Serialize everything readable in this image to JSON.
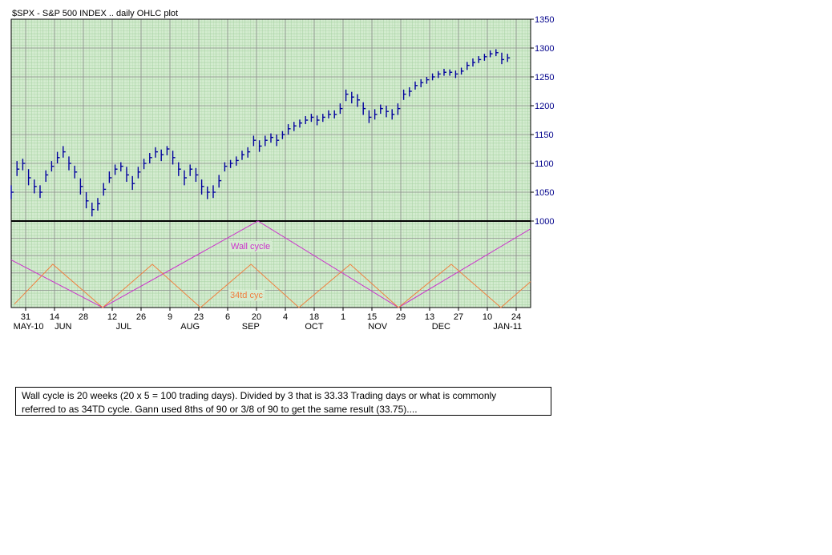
{
  "chart_data": {
    "type": "ohlc",
    "title": "$SPX - S&P 500 INDEX .. daily OHLC plot",
    "color": "#00009c",
    "xlim": [
      0,
      180
    ],
    "ylim": [
      1000,
      1350
    ],
    "yticks": [
      1000,
      1050,
      1100,
      1150,
      1200,
      1250,
      1300,
      1350
    ],
    "xticks": [
      {
        "value": 5,
        "label": "31"
      },
      {
        "value": 15,
        "label": "14"
      },
      {
        "value": 25,
        "label": "28"
      },
      {
        "value": 35,
        "label": "12"
      },
      {
        "value": 45,
        "label": "26"
      },
      {
        "value": 55,
        "label": "9"
      },
      {
        "value": 65,
        "label": "23"
      },
      {
        "value": 75,
        "label": "6"
      },
      {
        "value": 85,
        "label": "20"
      },
      {
        "value": 95,
        "label": "4"
      },
      {
        "value": 105,
        "label": "18"
      },
      {
        "value": 115,
        "label": "1"
      },
      {
        "value": 125,
        "label": "15"
      },
      {
        "value": 135,
        "label": "29"
      },
      {
        "value": 145,
        "label": "13"
      },
      {
        "value": 155,
        "label": "27"
      },
      {
        "value": 165,
        "label": "10"
      },
      {
        "value": 175,
        "label": "24"
      }
    ],
    "month_ticks": [
      {
        "value": 6,
        "label": "MAY-10"
      },
      {
        "value": 18,
        "label": "JUN"
      },
      {
        "value": 39,
        "label": "JUL"
      },
      {
        "value": 62,
        "label": "AUG"
      },
      {
        "value": 83,
        "label": "SEP"
      },
      {
        "value": 105,
        "label": "OCT"
      },
      {
        "value": 127,
        "label": "NOV"
      },
      {
        "value": 149,
        "label": "DEC"
      },
      {
        "value": 172,
        "label": "JAN-11"
      }
    ],
    "grid": true,
    "x": [
      0,
      2,
      4,
      6,
      8,
      10,
      12,
      14,
      16,
      18,
      20,
      22,
      24,
      26,
      28,
      30,
      32,
      34,
      36,
      38,
      40,
      42,
      44,
      46,
      48,
      50,
      52,
      54,
      56,
      58,
      60,
      62,
      64,
      66,
      68,
      70,
      72,
      74,
      76,
      78,
      80,
      82,
      84,
      86,
      88,
      90,
      92,
      94,
      96,
      98,
      100,
      102,
      104,
      106,
      108,
      110,
      112,
      114,
      116,
      118,
      120,
      122,
      124,
      126,
      128,
      130,
      132,
      134,
      136,
      138,
      140,
      142,
      144,
      146,
      148,
      150,
      152,
      154,
      156,
      158,
      160,
      162,
      164,
      166,
      168,
      170,
      172
    ],
    "high": [
      1062,
      1104,
      1108,
      1090,
      1072,
      1062,
      1088,
      1104,
      1120,
      1130,
      1112,
      1096,
      1074,
      1050,
      1032,
      1040,
      1066,
      1086,
      1098,
      1102,
      1094,
      1078,
      1094,
      1108,
      1118,
      1128,
      1124,
      1130,
      1122,
      1102,
      1088,
      1098,
      1092,
      1072,
      1060,
      1062,
      1080,
      1102,
      1106,
      1112,
      1122,
      1128,
      1148,
      1140,
      1148,
      1152,
      1150,
      1156,
      1168,
      1172,
      1176,
      1182,
      1186,
      1183,
      1186,
      1192,
      1192,
      1204,
      1228,
      1224,
      1220,
      1206,
      1192,
      1194,
      1202,
      1200,
      1194,
      1204,
      1228,
      1232,
      1242,
      1246,
      1250,
      1256,
      1260,
      1264,
      1263,
      1261,
      1266,
      1276,
      1282,
      1286,
      1290,
      1296,
      1298,
      1292,
      1290
    ],
    "low": [
      1038,
      1078,
      1088,
      1062,
      1048,
      1040,
      1068,
      1086,
      1100,
      1110,
      1088,
      1074,
      1046,
      1022,
      1008,
      1018,
      1044,
      1066,
      1080,
      1086,
      1068,
      1054,
      1074,
      1090,
      1100,
      1110,
      1104,
      1114,
      1098,
      1078,
      1062,
      1078,
      1068,
      1046,
      1038,
      1040,
      1058,
      1086,
      1092,
      1096,
      1106,
      1110,
      1130,
      1120,
      1130,
      1136,
      1130,
      1142,
      1150,
      1156,
      1162,
      1168,
      1172,
      1166,
      1172,
      1178,
      1178,
      1186,
      1208,
      1204,
      1198,
      1184,
      1170,
      1176,
      1186,
      1180,
      1176,
      1184,
      1210,
      1216,
      1228,
      1232,
      1238,
      1244,
      1248,
      1252,
      1252,
      1248,
      1254,
      1262,
      1268,
      1274,
      1278,
      1284,
      1286,
      1272,
      1276
    ],
    "close": [
      1050,
      1090,
      1100,
      1075,
      1060,
      1050,
      1080,
      1095,
      1110,
      1120,
      1100,
      1085,
      1060,
      1035,
      1020,
      1030,
      1055,
      1075,
      1090,
      1095,
      1080,
      1065,
      1085,
      1100,
      1110,
      1120,
      1115,
      1125,
      1110,
      1090,
      1075,
      1090,
      1080,
      1060,
      1050,
      1050,
      1070,
      1095,
      1100,
      1105,
      1115,
      1120,
      1140,
      1130,
      1140,
      1145,
      1140,
      1150,
      1160,
      1165,
      1170,
      1175,
      1180,
      1175,
      1180,
      1185,
      1185,
      1195,
      1220,
      1215,
      1210,
      1195,
      1180,
      1185,
      1195,
      1190,
      1185,
      1195,
      1220,
      1225,
      1235,
      1240,
      1245,
      1250,
      1255,
      1258,
      1258,
      1255,
      1260,
      1270,
      1275,
      1280,
      1285,
      1290,
      1292,
      1280,
      1283
    ],
    "cycles": [
      {
        "name": "Wall cycle",
        "color": "#cc33cc",
        "x": [
          0,
          31.7,
          85.5,
          134.2,
          180
        ],
        "values": [
          55,
          0,
          100,
          0,
          91
        ]
      },
      {
        "name": "34td cyc",
        "color": "#f08040",
        "x": [
          1.1,
          14.4,
          31.7,
          48.9,
          65.6,
          83.1,
          99.7,
          117.5,
          134.2,
          152.5,
          169.7,
          180
        ],
        "values": [
          4,
          50,
          0,
          50,
          0,
          50,
          0,
          50,
          0,
          50,
          0,
          30
        ]
      }
    ],
    "cycle_lim": [
      0,
      100
    ]
  },
  "note_lines": [
    "Wall cycle is 20 weeks (20 x 5 = 100 trading days).  Divided by 3 that is 33.33 Trading days or what is commonly",
    "referred to as 34TD cycle.  Gann used 8ths of 90 or 3/8 of 90  to get the same result (33.75)...."
  ]
}
